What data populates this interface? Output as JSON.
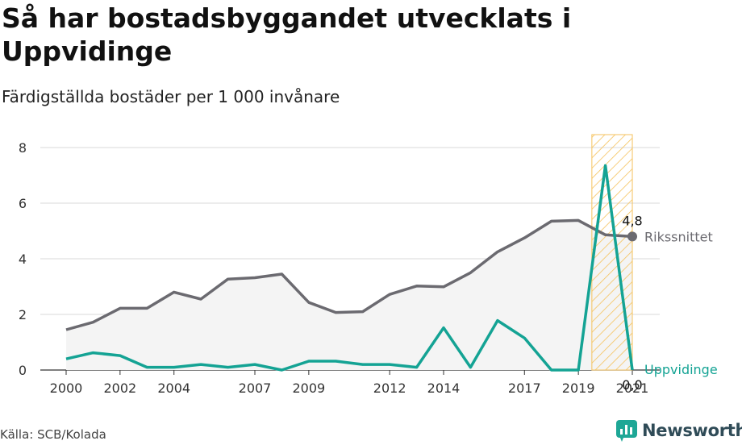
{
  "title": "Så har bostadsbyggandet utvecklats i Uppvidinge",
  "subtitle": "Färdigställda bostäder per 1 000 invånare",
  "source": "Källa: SCB/Kolada",
  "brand": "Newsworthy",
  "colors": {
    "national": "#6b6a70",
    "municipality": "#14a394",
    "highlight": "#f5c25c",
    "grid": "#d9d9d9",
    "area": "#f4f4f4"
  },
  "chart_data": {
    "type": "line",
    "x": [
      2000,
      2001,
      2002,
      2003,
      2004,
      2005,
      2006,
      2007,
      2008,
      2009,
      2010,
      2011,
      2012,
      2013,
      2014,
      2015,
      2016,
      2017,
      2018,
      2019,
      2020,
      2021
    ],
    "x_tick_labels": [
      "2000",
      "2002",
      "2004",
      "2007",
      "2009",
      "2012",
      "2014",
      "2017",
      "2019",
      "2021"
    ],
    "x_tick_values": [
      2000,
      2002,
      2004,
      2007,
      2009,
      2012,
      2014,
      2017,
      2019,
      2021
    ],
    "ylim": [
      0,
      8
    ],
    "y_ticks": [
      0,
      2,
      4,
      6,
      8
    ],
    "y_tick_labels": [
      "0",
      "2",
      "4",
      "6",
      "8"
    ],
    "grid": true,
    "highlight_range": [
      2019.5,
      2021
    ],
    "series": [
      {
        "name": "Rikssnittet",
        "values": [
          1.45,
          1.72,
          2.22,
          2.22,
          2.8,
          2.55,
          3.27,
          3.32,
          3.45,
          2.43,
          2.07,
          2.1,
          2.72,
          3.02,
          2.99,
          3.5,
          4.25,
          4.75,
          5.35,
          5.38,
          4.86,
          4.8
        ],
        "end_label": "4,8"
      },
      {
        "name": "Uppvidinge",
        "values": [
          0.4,
          0.62,
          0.52,
          0.1,
          0.1,
          0.2,
          0.1,
          0.2,
          0.0,
          0.32,
          0.32,
          0.2,
          0.2,
          0.1,
          1.52,
          0.1,
          1.78,
          1.15,
          0.0,
          0.0,
          7.35,
          0.0
        ],
        "end_label": "0,0"
      }
    ]
  }
}
